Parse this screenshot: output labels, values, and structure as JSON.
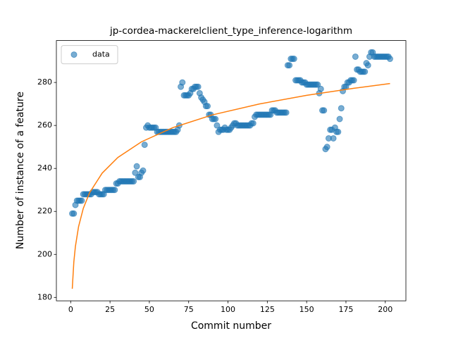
{
  "chart_data": {
    "type": "scatter",
    "title": "jp-cordea-mackerelclient_type_inference-logarithm",
    "x_label": "Commit number",
    "y_label": "Number of instance of a feature",
    "legend": "upper left",
    "xlim": [
      -9.1,
      213.1
    ],
    "ylim": [
      178.4,
      299.5
    ],
    "xticks": [
      0,
      25,
      50,
      75,
      100,
      125,
      150,
      175,
      200
    ],
    "yticks": [
      180,
      200,
      220,
      240,
      260,
      280
    ],
    "series": [
      {
        "name": "data",
        "type": "scatter",
        "color": "#1f77b4",
        "x": [
          1,
          2,
          3,
          4,
          5,
          6,
          7,
          8,
          9,
          10,
          11,
          12,
          13,
          14,
          15,
          16,
          17,
          18,
          19,
          20,
          21,
          22,
          23,
          24,
          25,
          26,
          27,
          28,
          29,
          30,
          31,
          32,
          33,
          34,
          35,
          36,
          37,
          38,
          39,
          40,
          41,
          42,
          43,
          44,
          45,
          46,
          47,
          48,
          49,
          50,
          51,
          52,
          53,
          54,
          55,
          56,
          57,
          58,
          59,
          60,
          61,
          62,
          63,
          64,
          65,
          66,
          67,
          68,
          69,
          70,
          71,
          72,
          73,
          74,
          75,
          76,
          77,
          78,
          79,
          80,
          81,
          82,
          83,
          84,
          85,
          86,
          87,
          88,
          89,
          90,
          91,
          92,
          93,
          94,
          95,
          96,
          97,
          98,
          99,
          100,
          101,
          102,
          103,
          104,
          105,
          106,
          107,
          108,
          109,
          110,
          111,
          112,
          113,
          114,
          115,
          116,
          117,
          118,
          119,
          120,
          121,
          122,
          123,
          124,
          125,
          126,
          127,
          128,
          129,
          130,
          131,
          132,
          133,
          134,
          135,
          136,
          137,
          138,
          139,
          140,
          141,
          142,
          143,
          144,
          145,
          146,
          147,
          148,
          149,
          150,
          151,
          152,
          153,
          154,
          155,
          156,
          157,
          158,
          159,
          160,
          161,
          162,
          163,
          164,
          165,
          166,
          167,
          168,
          169,
          170,
          171,
          172,
          173,
          174,
          175,
          176,
          177,
          178,
          179,
          180,
          181,
          182,
          183,
          184,
          185,
          186,
          187,
          188,
          189,
          190,
          191,
          192,
          193,
          194,
          195,
          196,
          197,
          198,
          199,
          200,
          201,
          202,
          203
        ],
        "values": [
          219,
          219,
          223,
          225,
          225,
          225,
          225,
          228,
          228,
          228,
          228,
          228,
          228,
          229,
          229,
          229,
          229,
          228,
          228,
          228,
          228,
          230,
          230,
          230,
          230,
          230,
          230,
          230,
          233,
          233,
          234,
          234,
          234,
          234,
          234,
          234,
          234,
          234,
          234,
          234,
          238,
          241,
          236,
          236,
          238,
          239,
          251,
          259,
          260,
          259,
          259,
          259,
          259,
          259,
          257,
          257,
          257,
          257,
          257,
          257,
          257,
          257,
          257,
          257,
          257,
          257,
          257,
          258,
          260,
          278,
          280,
          274,
          274,
          274,
          274,
          275,
          277,
          277,
          278,
          278,
          278,
          275,
          273,
          272,
          271,
          269,
          269,
          265,
          265,
          263,
          263,
          263,
          260,
          257,
          258,
          258,
          258,
          259,
          258,
          258,
          258,
          259,
          260,
          261,
          261,
          260,
          260,
          260,
          260,
          260,
          260,
          260,
          260,
          260,
          261,
          261,
          264,
          265,
          265,
          265,
          265,
          265,
          265,
          265,
          265,
          265,
          265,
          267,
          267,
          267,
          266,
          266,
          266,
          266,
          266,
          266,
          266,
          288,
          288,
          291,
          291,
          291,
          281,
          281,
          281,
          281,
          280,
          280,
          280,
          279,
          279,
          279,
          279,
          279,
          279,
          279,
          279,
          275,
          277,
          267,
          267,
          249,
          250,
          254,
          258,
          258,
          254,
          259,
          257,
          257,
          263,
          268,
          276,
          278,
          278,
          280,
          280,
          281,
          281,
          281,
          292,
          286,
          286,
          285,
          285,
          285,
          285,
          289,
          288,
          292,
          294,
          294,
          292,
          292,
          292,
          292,
          292,
          292,
          292,
          292,
          292,
          292,
          291
        ]
      },
      {
        "type": "line",
        "color": "#ff7f0e",
        "x": [
          1,
          2,
          3,
          5,
          8,
          12,
          20,
          30,
          45,
          65,
          90,
          120,
          150,
          180,
          203
        ],
        "values": [
          184.0,
          196.5,
          203.7,
          212.9,
          221.4,
          228.7,
          237.8,
          245.1,
          252.4,
          259.0,
          264.9,
          270.0,
          274.0,
          277.3,
          279.5
        ]
      }
    ]
  }
}
